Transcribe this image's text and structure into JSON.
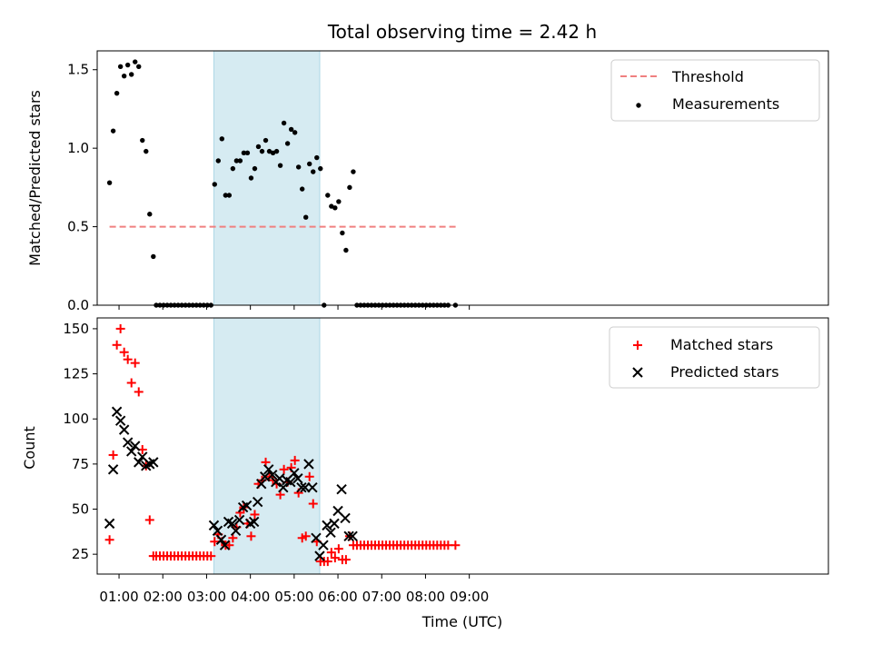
{
  "chart_data": {
    "type": "scatter",
    "title": "Total observing time = 2.42 h",
    "xlabel": "Time (UTC)",
    "x_tick_labels": [
      "01:00",
      "02:00",
      "03:00",
      "04:00",
      "05:00",
      "06:00",
      "07:00",
      "08:00",
      "09:00"
    ],
    "highlight_interval": [
      "03:10",
      "05:35"
    ],
    "top_panel": {
      "ylabel": "Matched/Predicted stars",
      "ylim": [
        0,
        1.62
      ],
      "y_ticks": [
        0,
        0.5,
        1.0,
        1.5
      ],
      "y_tick_labels": [
        "0.0",
        "0.5",
        "1.0",
        "1.5"
      ],
      "legend_placement": "top-right",
      "threshold": {
        "name": "Threshold",
        "value": 0.5,
        "x_range": [
          "00:47",
          "08:42"
        ],
        "color": "#f08080"
      },
      "series": [
        {
          "name": "Measurements",
          "color": "#000000",
          "x": [
            "00:47",
            "00:52",
            "00:57",
            "01:02",
            "01:07",
            "01:12",
            "01:17",
            "01:22",
            "01:27",
            "01:32",
            "01:37",
            "01:42",
            "01:47",
            "01:51",
            "01:56",
            "02:01",
            "02:06",
            "02:11",
            "02:16",
            "02:21",
            "02:26",
            "02:31",
            "02:36",
            "02:41",
            "02:46",
            "02:51",
            "02:56",
            "03:01",
            "03:06",
            "03:11",
            "03:16",
            "03:21",
            "03:26",
            "03:31",
            "03:36",
            "03:41",
            "03:46",
            "03:51",
            "03:56",
            "04:01",
            "04:06",
            "04:11",
            "04:16",
            "04:21",
            "04:26",
            "04:31",
            "04:36",
            "04:41",
            "04:46",
            "04:51",
            "04:56",
            "05:01",
            "05:06",
            "05:11",
            "05:16",
            "05:21",
            "05:26",
            "05:31",
            "05:36",
            "05:41",
            "05:46",
            "05:51",
            "05:56",
            "06:01",
            "06:06",
            "06:11",
            "06:16",
            "06:21",
            "06:26",
            "06:31",
            "06:36",
            "06:41",
            "06:46",
            "06:51",
            "06:56",
            "07:01",
            "07:06",
            "07:11",
            "07:16",
            "07:21",
            "07:26",
            "07:31",
            "07:36",
            "07:41",
            "07:46",
            "07:51",
            "07:56",
            "08:01",
            "08:06",
            "08:11",
            "08:16",
            "08:21",
            "08:26",
            "08:31",
            "08:41"
          ],
          "y": [
            0.78,
            1.11,
            1.35,
            1.52,
            1.46,
            1.53,
            1.47,
            1.55,
            1.52,
            1.05,
            0.98,
            0.58,
            0.31,
            0,
            0,
            0,
            0,
            0,
            0,
            0,
            0,
            0,
            0,
            0,
            0,
            0,
            0,
            0,
            0,
            0.77,
            0.92,
            1.06,
            0.7,
            0.7,
            0.87,
            0.92,
            0.92,
            0.97,
            0.97,
            0.81,
            0.87,
            1.01,
            0.98,
            1.05,
            0.98,
            0.97,
            0.98,
            0.89,
            1.16,
            1.03,
            1.12,
            1.1,
            0.88,
            0.74,
            0.56,
            0.9,
            0.85,
            0.94,
            0.87,
            0,
            0.7,
            0.63,
            0.62,
            0.66,
            0.46,
            0.35,
            0.75,
            0.85,
            0,
            0,
            0,
            0,
            0,
            0,
            0,
            0,
            0,
            0,
            0,
            0,
            0,
            0,
            0,
            0,
            0,
            0,
            0,
            0,
            0,
            0,
            0,
            0,
            0,
            0,
            0
          ]
        }
      ]
    },
    "bottom_panel": {
      "ylabel": "Count",
      "ylim": [
        14,
        156
      ],
      "y_ticks": [
        25,
        50,
        75,
        100,
        125,
        150
      ],
      "y_tick_labels": [
        "25",
        "50",
        "75",
        "100",
        "125",
        "150"
      ],
      "legend_placement": "top-right",
      "series": [
        {
          "name": "Matched stars",
          "color": "#ff0000",
          "marker": "plus",
          "x": [
            "00:47",
            "00:52",
            "00:57",
            "01:02",
            "01:07",
            "01:12",
            "01:17",
            "01:22",
            "01:27",
            "01:32",
            "01:37",
            "01:42",
            "01:47",
            "01:51",
            "01:56",
            "02:01",
            "02:06",
            "02:11",
            "02:16",
            "02:21",
            "02:26",
            "02:31",
            "02:36",
            "02:41",
            "02:46",
            "02:51",
            "02:56",
            "03:01",
            "03:06",
            "03:11",
            "03:16",
            "03:21",
            "03:26",
            "03:31",
            "03:36",
            "03:41",
            "03:46",
            "03:51",
            "03:56",
            "04:01",
            "04:06",
            "04:11",
            "04:16",
            "04:21",
            "04:26",
            "04:31",
            "04:36",
            "04:41",
            "04:46",
            "04:51",
            "04:56",
            "05:01",
            "05:06",
            "05:11",
            "05:16",
            "05:21",
            "05:26",
            "05:31",
            "05:36",
            "05:41",
            "05:46",
            "05:51",
            "05:56",
            "06:01",
            "06:06",
            "06:11",
            "06:16",
            "06:21",
            "06:26",
            "06:31",
            "06:36",
            "06:41",
            "06:46",
            "06:51",
            "06:56",
            "07:01",
            "07:06",
            "07:11",
            "07:16",
            "07:21",
            "07:26",
            "07:31",
            "07:36",
            "07:41",
            "07:46",
            "07:51",
            "07:56",
            "08:01",
            "08:06",
            "08:11",
            "08:16",
            "08:21",
            "08:26",
            "08:31",
            "08:41"
          ],
          "y": [
            33,
            80,
            141,
            150,
            137,
            133,
            120,
            131,
            115,
            83,
            74,
            44,
            24,
            24,
            24,
            24,
            24,
            24,
            24,
            24,
            24,
            24,
            24,
            24,
            24,
            24,
            24,
            24,
            24,
            32,
            36,
            32,
            30,
            30,
            34,
            40,
            48,
            51,
            42,
            35,
            47,
            64,
            66,
            76,
            68,
            66,
            64,
            58,
            72,
            65,
            73,
            77,
            59,
            34,
            35,
            68,
            53,
            32,
            21,
            21,
            21,
            26,
            23,
            28,
            22,
            22,
            35,
            30,
            30,
            30,
            30,
            30,
            30,
            30,
            30,
            30,
            30,
            30,
            30,
            30,
            30,
            30,
            30,
            30,
            30,
            30,
            30,
            30,
            30,
            30,
            30,
            30,
            30,
            30,
            30
          ]
        },
        {
          "name": "Predicted stars",
          "color": "#000000",
          "marker": "x",
          "x": [
            "00:47",
            "00:52",
            "00:57",
            "01:02",
            "01:07",
            "01:12",
            "01:17",
            "01:22",
            "01:27",
            "01:32",
            "01:37",
            "01:42",
            "01:47",
            "03:10",
            "03:15",
            "03:20",
            "03:25",
            "03:30",
            "03:35",
            "03:40",
            "03:45",
            "03:50",
            "03:55",
            "04:00",
            "04:05",
            "04:10",
            "04:15",
            "04:20",
            "04:25",
            "04:30",
            "04:35",
            "04:40",
            "04:45",
            "04:50",
            "04:55",
            "05:00",
            "05:05",
            "05:10",
            "05:15",
            "05:20",
            "05:25",
            "05:30",
            "05:35",
            "05:40",
            "05:45",
            "05:50",
            "05:55",
            "06:00",
            "06:05",
            "06:10",
            "06:15",
            "06:20"
          ],
          "y": [
            42,
            72,
            104,
            99,
            94,
            87,
            82,
            85,
            76,
            79,
            74,
            75,
            76,
            41,
            38,
            33,
            30,
            43,
            42,
            38,
            44,
            51,
            52,
            42,
            43,
            54,
            64,
            68,
            72,
            69,
            65,
            67,
            62,
            66,
            65,
            70,
            67,
            62,
            62,
            75,
            62,
            34,
            24,
            30,
            41,
            37,
            42,
            49,
            61,
            45,
            35,
            35
          ]
        }
      ]
    }
  }
}
